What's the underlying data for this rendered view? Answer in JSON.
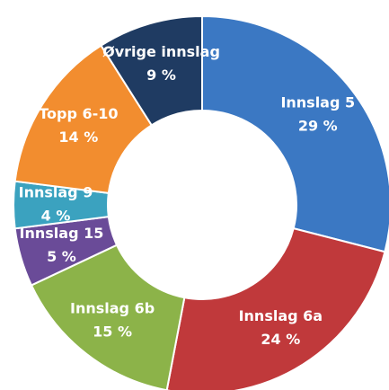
{
  "chart_data": {
    "type": "donut",
    "categories": [
      "Innslag 5",
      "Innslag 6a",
      "Innslag 6b",
      "Innslag 15",
      "Innslag 9",
      "Topp 6-10",
      "Øvrige innslag"
    ],
    "values": [
      29,
      24,
      15,
      5,
      4,
      14,
      9
    ],
    "value_labels": [
      "29 %",
      "24 %",
      "15 %",
      "5 %",
      "4 %",
      "14 %",
      "9 %"
    ],
    "colors": [
      "#3b78c3",
      "#c0393b",
      "#8cb349",
      "#6a4b98",
      "#3ba2bf",
      "#f28d2f",
      "#1f3b62"
    ]
  }
}
